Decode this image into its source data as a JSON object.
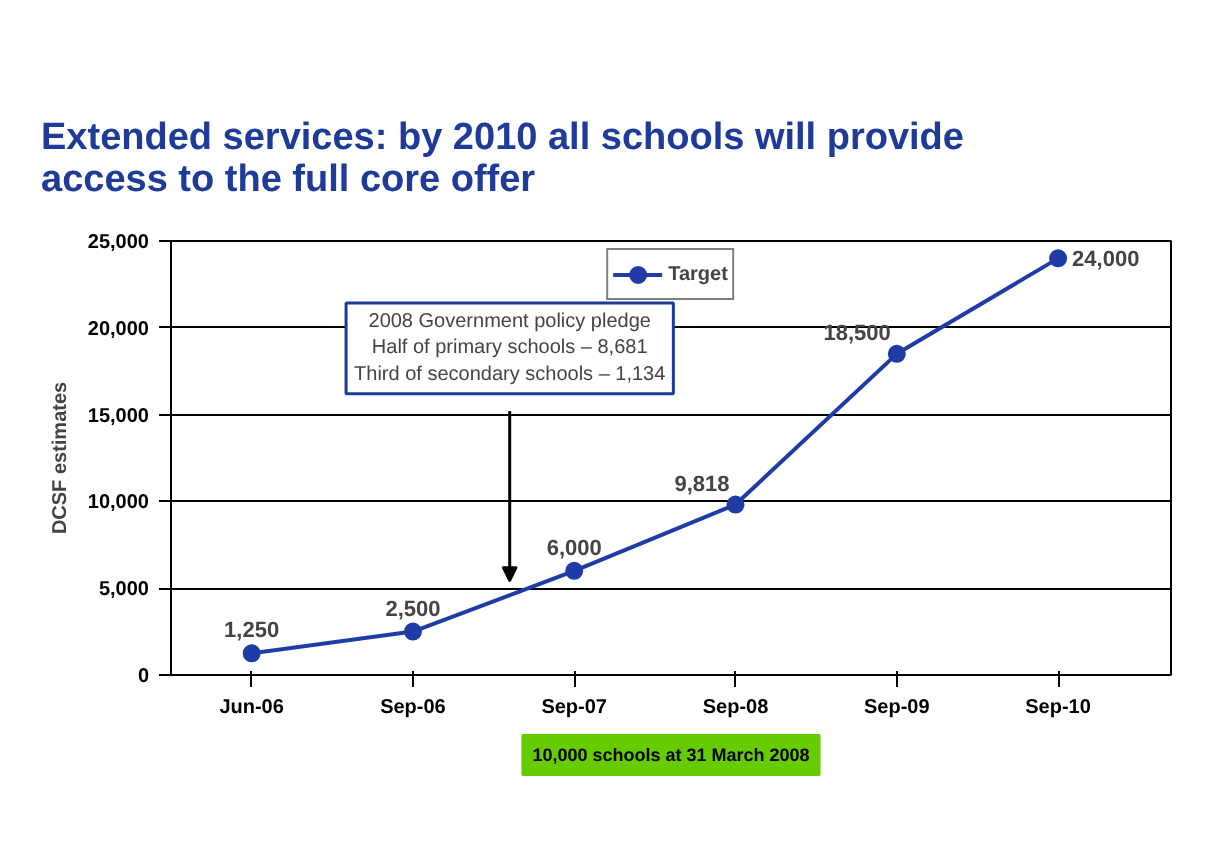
{
  "chart_data": {
    "type": "line",
    "title": "Extended services: by 2010 all schools will provide\naccess to the full core offer",
    "ylabel": "DCSF estimates",
    "categories": [
      "Jun-06",
      "Sep-06",
      "Sep-07",
      "Sep-08",
      "Sep-09",
      "Sep-10"
    ],
    "series": [
      {
        "name": "Target",
        "color": "#1f3ca6",
        "values": [
          1250,
          2500,
          6000,
          9818,
          18500,
          24000
        ]
      }
    ],
    "ylim": [
      0,
      25000
    ],
    "yticks": [
      {
        "value": 0,
        "label": "0"
      },
      {
        "value": 5000,
        "label": "5,000"
      },
      {
        "value": 10000,
        "label": "10,000"
      },
      {
        "value": 15000,
        "label": "15,000"
      },
      {
        "value": 20000,
        "label": "20,000"
      },
      {
        "value": 25000,
        "label": "25,000"
      }
    ],
    "value_labels": [
      "1,250",
      "2,500",
      "6,000",
      "9,818",
      "18,500",
      "24,000"
    ],
    "annotations": [
      "2008 Government policy pledge\nHalf of primary schools – 8,681\nThird of secondary schools – 1,134",
      "10,000 schools at 31 March 2008"
    ],
    "grid": "y",
    "legend": "top",
    "marker": "circle",
    "line_style": "solid"
  }
}
